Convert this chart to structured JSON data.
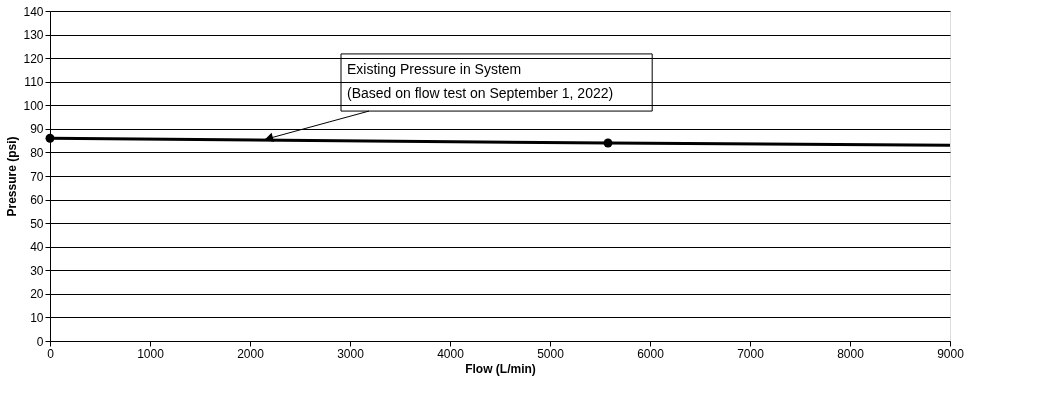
{
  "chart_data": {
    "type": "line",
    "xlabel": "Flow (L/min)",
    "ylabel": "Pressure (psi)",
    "xlim": [
      0,
      9000
    ],
    "xticks": [
      0,
      1000,
      2000,
      3000,
      4000,
      5000,
      6000,
      7000,
      8000,
      9000
    ],
    "ylim": [
      0,
      140
    ],
    "yticks": [
      0,
      10,
      20,
      30,
      40,
      50,
      60,
      70,
      80,
      90,
      100,
      110,
      120,
      130,
      140
    ],
    "grid": "y",
    "legend": false,
    "series": [
      {
        "type": "line",
        "color": "#000000",
        "marker": "none",
        "line_style": "solid",
        "x": [
          0,
          5580,
          9000
        ],
        "values": [
          86,
          84,
          83
        ]
      },
      {
        "type": "scatter",
        "color": "#000000",
        "marker": "circle",
        "x": [
          0,
          5580
        ],
        "values": [
          86,
          84
        ]
      }
    ],
    "annotations": [
      {
        "text": "Existing Pressure in System\n(Based on flow test on September 1, 2022)",
        "x": 2150,
        "y": 85.5
      }
    ]
  }
}
